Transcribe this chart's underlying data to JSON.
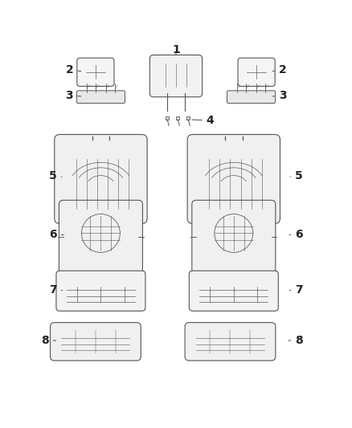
{
  "background_color": "#ffffff",
  "line_color": "#555555",
  "label_color": "#222222",
  "fig_width": 4.38,
  "fig_height": 5.33,
  "dpi": 100,
  "label_fontsize": 10
}
